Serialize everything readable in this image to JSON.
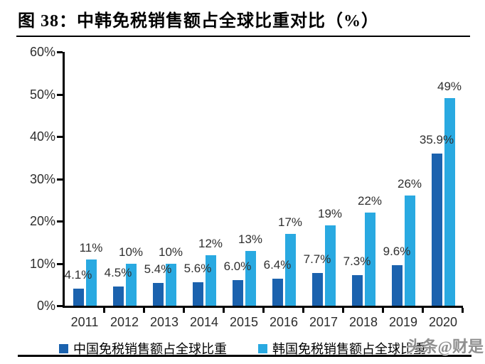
{
  "title": "图 38：中韩免税销售额占全球比重对比（%）",
  "watermark": "头条@财是",
  "colors": {
    "china_bar": "#1B62AE",
    "korea_bar": "#29A9E1",
    "axis": "#000000",
    "label_text": "#2f2f2f"
  },
  "chart_data": {
    "type": "bar",
    "title": "图 38：中韩免税销售额占全球比重对比（%）",
    "categories": [
      "2011",
      "2012",
      "2013",
      "2014",
      "2015",
      "2016",
      "2017",
      "2018",
      "2019",
      "2020"
    ],
    "series": [
      {
        "name": "中国免税销售额占全球比重",
        "color": "#1B62AE",
        "values": [
          4.1,
          4.5,
          5.4,
          5.6,
          6.0,
          6.4,
          7.7,
          7.3,
          9.6,
          35.9
        ],
        "labels": [
          "4.1%",
          "4.5%",
          "5.4%",
          "5.6%",
          "6.0%",
          "6.4%",
          "7.7%",
          "7.3%",
          "9.6%",
          "35.9%"
        ]
      },
      {
        "name": "韩国免税销售额占全球比重",
        "color": "#29A9E1",
        "values": [
          11,
          10,
          10,
          12,
          13,
          17,
          19,
          22,
          26,
          49
        ],
        "labels": [
          "11%",
          "10%",
          "10%",
          "12%",
          "13%",
          "17%",
          "19%",
          "22%",
          "26%",
          "49%"
        ]
      }
    ],
    "xlabel": "",
    "ylabel": "",
    "ylim": [
      0,
      60
    ],
    "ytick_step": 10,
    "yticks": [
      "0%",
      "10%",
      "20%",
      "30%",
      "40%",
      "50%",
      "60%"
    ],
    "grid": false,
    "legend_position": "bottom"
  }
}
